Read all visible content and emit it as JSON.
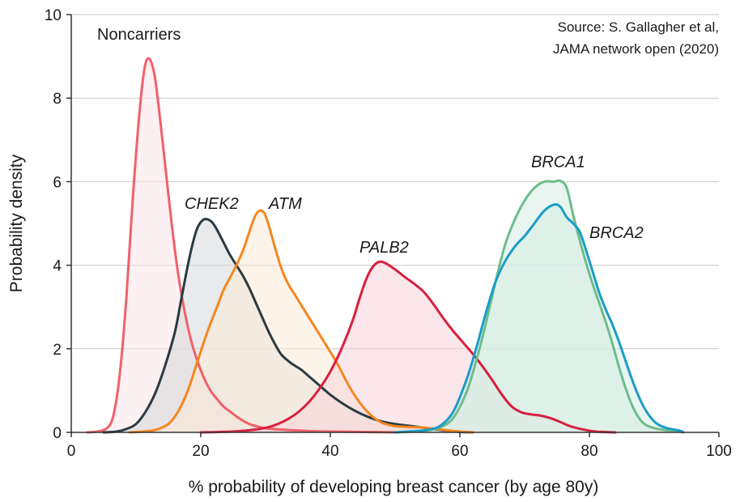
{
  "chart_data": {
    "type": "area",
    "xlabel": "% probability of developing breast cancer (by age 80y)",
    "ylabel": "Probability density",
    "xlim": [
      0,
      100
    ],
    "ylim": [
      0,
      10
    ],
    "xticks": [
      0,
      20,
      40,
      60,
      80,
      100
    ],
    "yticks": [
      0,
      2,
      4,
      6,
      8,
      10
    ],
    "grid": "horizontal",
    "annotation": {
      "lines": [
        "Source: S. Gallagher et al,",
        "JAMA network open (2020)"
      ]
    },
    "series": [
      {
        "name": "Noncarriers",
        "italic": false,
        "color": "#f0616a",
        "fill": "#fbe3e8",
        "label_at": [
          4,
          9.4
        ],
        "points": [
          [
            2.5,
            0
          ],
          [
            4,
            0.02
          ],
          [
            5.5,
            0.1
          ],
          [
            6.5,
            0.4
          ],
          [
            7.5,
            1.4
          ],
          [
            8.5,
            3.2
          ],
          [
            9.5,
            5.6
          ],
          [
            10.5,
            7.6
          ],
          [
            11.3,
            8.7
          ],
          [
            12,
            8.95
          ],
          [
            12.8,
            8.6
          ],
          [
            13.5,
            7.8
          ],
          [
            14.5,
            6.4
          ],
          [
            15.5,
            5.0
          ],
          [
            16.5,
            3.8
          ],
          [
            17.5,
            2.9
          ],
          [
            18.5,
            2.2
          ],
          [
            19.5,
            1.7
          ],
          [
            20.5,
            1.3
          ],
          [
            21.5,
            1.0
          ],
          [
            22.5,
            0.8
          ],
          [
            23.5,
            0.62
          ],
          [
            24.5,
            0.5
          ],
          [
            25.5,
            0.38
          ],
          [
            26.5,
            0.28
          ],
          [
            27.5,
            0.2
          ],
          [
            28.5,
            0.15
          ],
          [
            30,
            0.1
          ],
          [
            32,
            0.07
          ],
          [
            34,
            0.05
          ],
          [
            37,
            0.03
          ],
          [
            40,
            0.02
          ],
          [
            45,
            0.01
          ],
          [
            50,
            0
          ]
        ]
      },
      {
        "name": "CHEK2",
        "italic": true,
        "color": "#2b3a42",
        "fill": "#d5d8db",
        "label_at": [
          17.5,
          5.35
        ],
        "points": [
          [
            5,
            0
          ],
          [
            7,
            0.02
          ],
          [
            8.5,
            0.08
          ],
          [
            10,
            0.2
          ],
          [
            11.5,
            0.5
          ],
          [
            13,
            0.95
          ],
          [
            14.5,
            1.6
          ],
          [
            16,
            2.4
          ],
          [
            17,
            3.2
          ],
          [
            18,
            4.0
          ],
          [
            18.8,
            4.55
          ],
          [
            19.5,
            4.9
          ],
          [
            20.3,
            5.08
          ],
          [
            21,
            5.1
          ],
          [
            21.8,
            5.02
          ],
          [
            22.5,
            4.85
          ],
          [
            23.5,
            4.55
          ],
          [
            24.5,
            4.25
          ],
          [
            25.5,
            4.0
          ],
          [
            26.5,
            3.75
          ],
          [
            27.5,
            3.45
          ],
          [
            28.5,
            3.1
          ],
          [
            29.5,
            2.75
          ],
          [
            30.5,
            2.4
          ],
          [
            31.5,
            2.1
          ],
          [
            32.5,
            1.85
          ],
          [
            34,
            1.65
          ],
          [
            35.5,
            1.5
          ],
          [
            37,
            1.3
          ],
          [
            38.5,
            1.1
          ],
          [
            40,
            0.9
          ],
          [
            42,
            0.68
          ],
          [
            44,
            0.5
          ],
          [
            46,
            0.36
          ],
          [
            48,
            0.26
          ],
          [
            50,
            0.2
          ],
          [
            52,
            0.16
          ],
          [
            54,
            0.12
          ],
          [
            56,
            0.08
          ],
          [
            58,
            0.04
          ],
          [
            60,
            0.01
          ],
          [
            62,
            0
          ]
        ]
      },
      {
        "name": "ATM",
        "italic": true,
        "color": "#f5861f",
        "fill": "#fbe9d7",
        "label_at": [
          30.5,
          5.35
        ],
        "points": [
          [
            9,
            0
          ],
          [
            11,
            0.02
          ],
          [
            13,
            0.06
          ],
          [
            15,
            0.2
          ],
          [
            16.5,
            0.5
          ],
          [
            18,
            1.0
          ],
          [
            19.5,
            1.7
          ],
          [
            21,
            2.4
          ],
          [
            22.5,
            3.0
          ],
          [
            23.5,
            3.4
          ],
          [
            24.5,
            3.7
          ],
          [
            25.5,
            4.0
          ],
          [
            26.5,
            4.35
          ],
          [
            27.5,
            4.8
          ],
          [
            28.3,
            5.15
          ],
          [
            29,
            5.3
          ],
          [
            29.8,
            5.25
          ],
          [
            30.5,
            4.95
          ],
          [
            31.5,
            4.4
          ],
          [
            32.5,
            3.9
          ],
          [
            33.5,
            3.55
          ],
          [
            34.5,
            3.3
          ],
          [
            35.5,
            3.05
          ],
          [
            36.5,
            2.8
          ],
          [
            37.5,
            2.55
          ],
          [
            38.5,
            2.3
          ],
          [
            39.5,
            2.05
          ],
          [
            40.5,
            1.8
          ],
          [
            41.5,
            1.52
          ],
          [
            42.5,
            1.22
          ],
          [
            43.5,
            0.95
          ],
          [
            44.5,
            0.72
          ],
          [
            45.5,
            0.53
          ],
          [
            46.5,
            0.38
          ],
          [
            47.5,
            0.27
          ],
          [
            48.5,
            0.2
          ],
          [
            50,
            0.15
          ],
          [
            52,
            0.13
          ],
          [
            54,
            0.12
          ],
          [
            56,
            0.09
          ],
          [
            58,
            0.05
          ],
          [
            60,
            0.02
          ],
          [
            62,
            0
          ]
        ]
      },
      {
        "name": "PALB2",
        "italic": true,
        "color": "#d81f3e",
        "fill": "#f7d3da",
        "label_at": [
          44.5,
          4.3
        ],
        "points": [
          [
            20,
            0
          ],
          [
            23,
            0.01
          ],
          [
            26,
            0.03
          ],
          [
            29,
            0.08
          ],
          [
            31,
            0.15
          ],
          [
            33,
            0.28
          ],
          [
            35,
            0.48
          ],
          [
            37,
            0.78
          ],
          [
            39,
            1.2
          ],
          [
            40.5,
            1.6
          ],
          [
            42,
            2.1
          ],
          [
            43.5,
            2.7
          ],
          [
            44.5,
            3.2
          ],
          [
            45.5,
            3.65
          ],
          [
            46.5,
            3.95
          ],
          [
            47.5,
            4.08
          ],
          [
            48.5,
            4.05
          ],
          [
            50,
            3.9
          ],
          [
            51.5,
            3.72
          ],
          [
            53,
            3.55
          ],
          [
            54.5,
            3.35
          ],
          [
            56,
            3.05
          ],
          [
            57.5,
            2.72
          ],
          [
            59,
            2.42
          ],
          [
            60.5,
            2.15
          ],
          [
            62,
            1.88
          ],
          [
            63.5,
            1.58
          ],
          [
            65,
            1.25
          ],
          [
            66.5,
            0.9
          ],
          [
            68,
            0.62
          ],
          [
            69.5,
            0.48
          ],
          [
            71,
            0.43
          ],
          [
            72.5,
            0.4
          ],
          [
            74,
            0.34
          ],
          [
            75.5,
            0.25
          ],
          [
            77,
            0.15
          ],
          [
            79,
            0.07
          ],
          [
            81,
            0.02
          ],
          [
            84,
            0
          ]
        ]
      },
      {
        "name": "BRCA1",
        "italic": true,
        "color": "#6dbd8d",
        "fill": "#d6ede4",
        "label_at": [
          71,
          6.35
        ],
        "points": [
          [
            50,
            0
          ],
          [
            53,
            0.02
          ],
          [
            55,
            0.05
          ],
          [
            57,
            0.12
          ],
          [
            59,
            0.35
          ],
          [
            61,
            0.95
          ],
          [
            62.5,
            1.7
          ],
          [
            64,
            2.6
          ],
          [
            65.5,
            3.6
          ],
          [
            67,
            4.5
          ],
          [
            68.5,
            5.1
          ],
          [
            70,
            5.55
          ],
          [
            71.5,
            5.85
          ],
          [
            73,
            6.0
          ],
          [
            74.5,
            6.0
          ],
          [
            75.5,
            6.02
          ],
          [
            76.5,
            5.85
          ],
          [
            77.5,
            5.2
          ],
          [
            78.5,
            4.6
          ],
          [
            79.5,
            4.05
          ],
          [
            80.5,
            3.55
          ],
          [
            81.5,
            3.1
          ],
          [
            82.5,
            2.65
          ],
          [
            83.5,
            2.15
          ],
          [
            84.5,
            1.6
          ],
          [
            85.5,
            1.1
          ],
          [
            86.5,
            0.68
          ],
          [
            87.5,
            0.38
          ],
          [
            88.5,
            0.2
          ],
          [
            90,
            0.1
          ],
          [
            92,
            0.05
          ],
          [
            94,
            0.02
          ],
          [
            94.5,
            0
          ]
        ]
      },
      {
        "name": "BRCA2",
        "italic": true,
        "color": "#1a9dc7",
        "fill": "#d6ede4",
        "label_at": [
          80,
          4.65
        ],
        "points": [
          [
            50,
            0
          ],
          [
            53,
            0.03
          ],
          [
            55,
            0.06
          ],
          [
            57,
            0.16
          ],
          [
            59,
            0.5
          ],
          [
            61,
            1.25
          ],
          [
            62.5,
            2.0
          ],
          [
            64,
            2.85
          ],
          [
            65.5,
            3.6
          ],
          [
            67,
            4.1
          ],
          [
            68.5,
            4.45
          ],
          [
            70,
            4.7
          ],
          [
            71.5,
            5.0
          ],
          [
            73,
            5.3
          ],
          [
            74.5,
            5.45
          ],
          [
            75.5,
            5.4
          ],
          [
            76.5,
            5.15
          ],
          [
            77.5,
            5.0
          ],
          [
            78.5,
            4.8
          ],
          [
            79.5,
            4.35
          ],
          [
            80.5,
            3.85
          ],
          [
            81.5,
            3.35
          ],
          [
            82.5,
            2.95
          ],
          [
            83.5,
            2.6
          ],
          [
            84.5,
            2.2
          ],
          [
            85.5,
            1.75
          ],
          [
            86.5,
            1.3
          ],
          [
            87.5,
            0.9
          ],
          [
            88.5,
            0.58
          ],
          [
            89.5,
            0.35
          ],
          [
            90.5,
            0.2
          ],
          [
            92,
            0.1
          ],
          [
            94,
            0.04
          ],
          [
            94.5,
            0
          ]
        ]
      }
    ]
  }
}
